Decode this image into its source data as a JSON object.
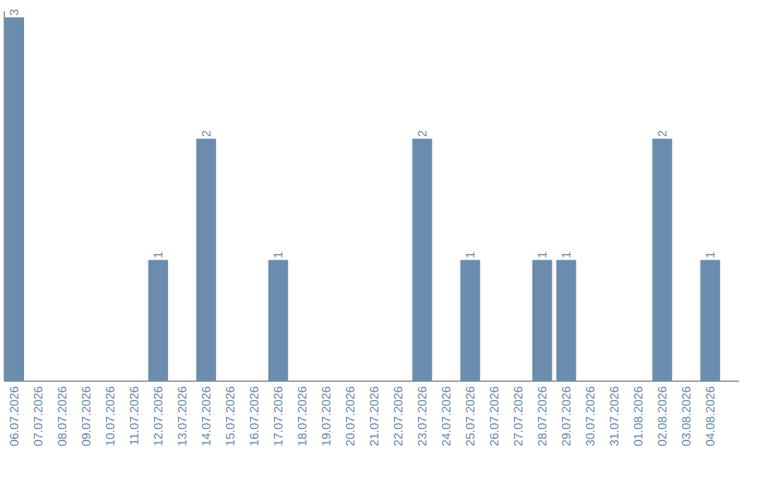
{
  "chart_data": {
    "type": "bar",
    "categories": [
      "06.07.2026",
      "07.07.2026",
      "08.07.2026",
      "09.07.2026",
      "10.07.2026",
      "11.07.2026",
      "12.07.2026",
      "13.07.2026",
      "14.07.2026",
      "15.07.2026",
      "16.07.2026",
      "17.07.2026",
      "18.07.2026",
      "19.07.2026",
      "20.07.2026",
      "21.07.2026",
      "22.07.2026",
      "23.07.2026",
      "24.07.2026",
      "25.07.2026",
      "26.07.2026",
      "27.07.2026",
      "28.07.2026",
      "29.07.2026",
      "30.07.2026",
      "31.07.2026",
      "01.08.2026",
      "02.08.2026",
      "03.08.2026",
      "04.08.2026"
    ],
    "values": [
      3,
      0,
      0,
      0,
      0,
      0,
      1,
      0,
      2,
      0,
      0,
      1,
      0,
      0,
      0,
      0,
      0,
      2,
      0,
      1,
      0,
      0,
      1,
      1,
      0,
      0,
      0,
      2,
      0,
      1
    ],
    "value_labels": [
      "3",
      null,
      null,
      null,
      null,
      null,
      "1",
      null,
      "2",
      null,
      null,
      "1",
      null,
      null,
      null,
      null,
      null,
      "2",
      null,
      "1",
      null,
      null,
      "1",
      "1",
      null,
      null,
      null,
      "2",
      null,
      "1"
    ],
    "color": "#6b8cad",
    "ylim": [
      0,
      3.05
    ],
    "tick_labels": "x"
  }
}
